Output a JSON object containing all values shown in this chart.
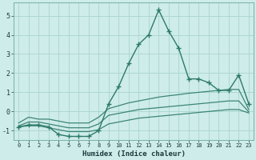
{
  "xlabel": "Humidex (Indice chaleur)",
  "background_color": "#ceecea",
  "grid_color": "#a8d5d0",
  "line_color": "#2d7a6a",
  "xlim": [
    -0.5,
    23.5
  ],
  "ylim": [
    -1.5,
    5.7
  ],
  "xticks": [
    0,
    1,
    2,
    3,
    4,
    5,
    6,
    7,
    8,
    9,
    10,
    11,
    12,
    13,
    14,
    15,
    16,
    17,
    18,
    19,
    20,
    21,
    22,
    23
  ],
  "yticks": [
    -1,
    0,
    1,
    2,
    3,
    4,
    5
  ],
  "main_series": [
    -0.8,
    -0.7,
    -0.7,
    -0.8,
    -1.2,
    -1.3,
    -1.3,
    -1.3,
    -1.0,
    0.4,
    1.3,
    2.5,
    3.5,
    4.0,
    5.3,
    4.2,
    3.3,
    1.7,
    1.7,
    1.5,
    1.1,
    1.1,
    1.9,
    0.4
  ],
  "line_upper": [
    -0.6,
    -0.3,
    -0.4,
    -0.4,
    -0.5,
    -0.6,
    -0.6,
    -0.6,
    -0.3,
    0.15,
    0.3,
    0.45,
    0.55,
    0.65,
    0.75,
    0.82,
    0.88,
    0.95,
    1.0,
    1.05,
    1.1,
    1.15,
    1.15,
    0.1
  ],
  "line_mid": [
    -0.75,
    -0.55,
    -0.55,
    -0.65,
    -0.75,
    -0.85,
    -0.85,
    -0.85,
    -0.65,
    -0.2,
    -0.1,
    0.0,
    0.1,
    0.15,
    0.2,
    0.25,
    0.3,
    0.35,
    0.4,
    0.45,
    0.5,
    0.55,
    0.55,
    -0.02
  ],
  "line_lower": [
    -0.8,
    -0.75,
    -0.75,
    -0.85,
    -0.95,
    -1.05,
    -1.05,
    -1.05,
    -0.95,
    -0.65,
    -0.55,
    -0.45,
    -0.35,
    -0.3,
    -0.25,
    -0.2,
    -0.15,
    -0.1,
    -0.05,
    0.0,
    0.05,
    0.1,
    0.1,
    -0.08
  ]
}
